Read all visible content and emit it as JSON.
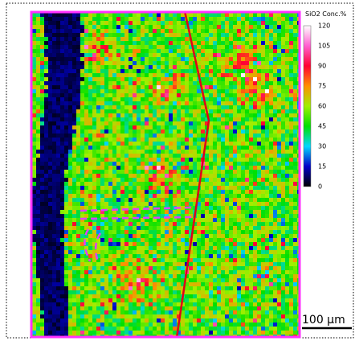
{
  "colorbar": {
    "title": "SiO2 Conc.%",
    "ticks": [
      0,
      15,
      30,
      45,
      60,
      75,
      90,
      105,
      120
    ]
  },
  "scale_bar": {
    "label": "100 μm"
  }
}
